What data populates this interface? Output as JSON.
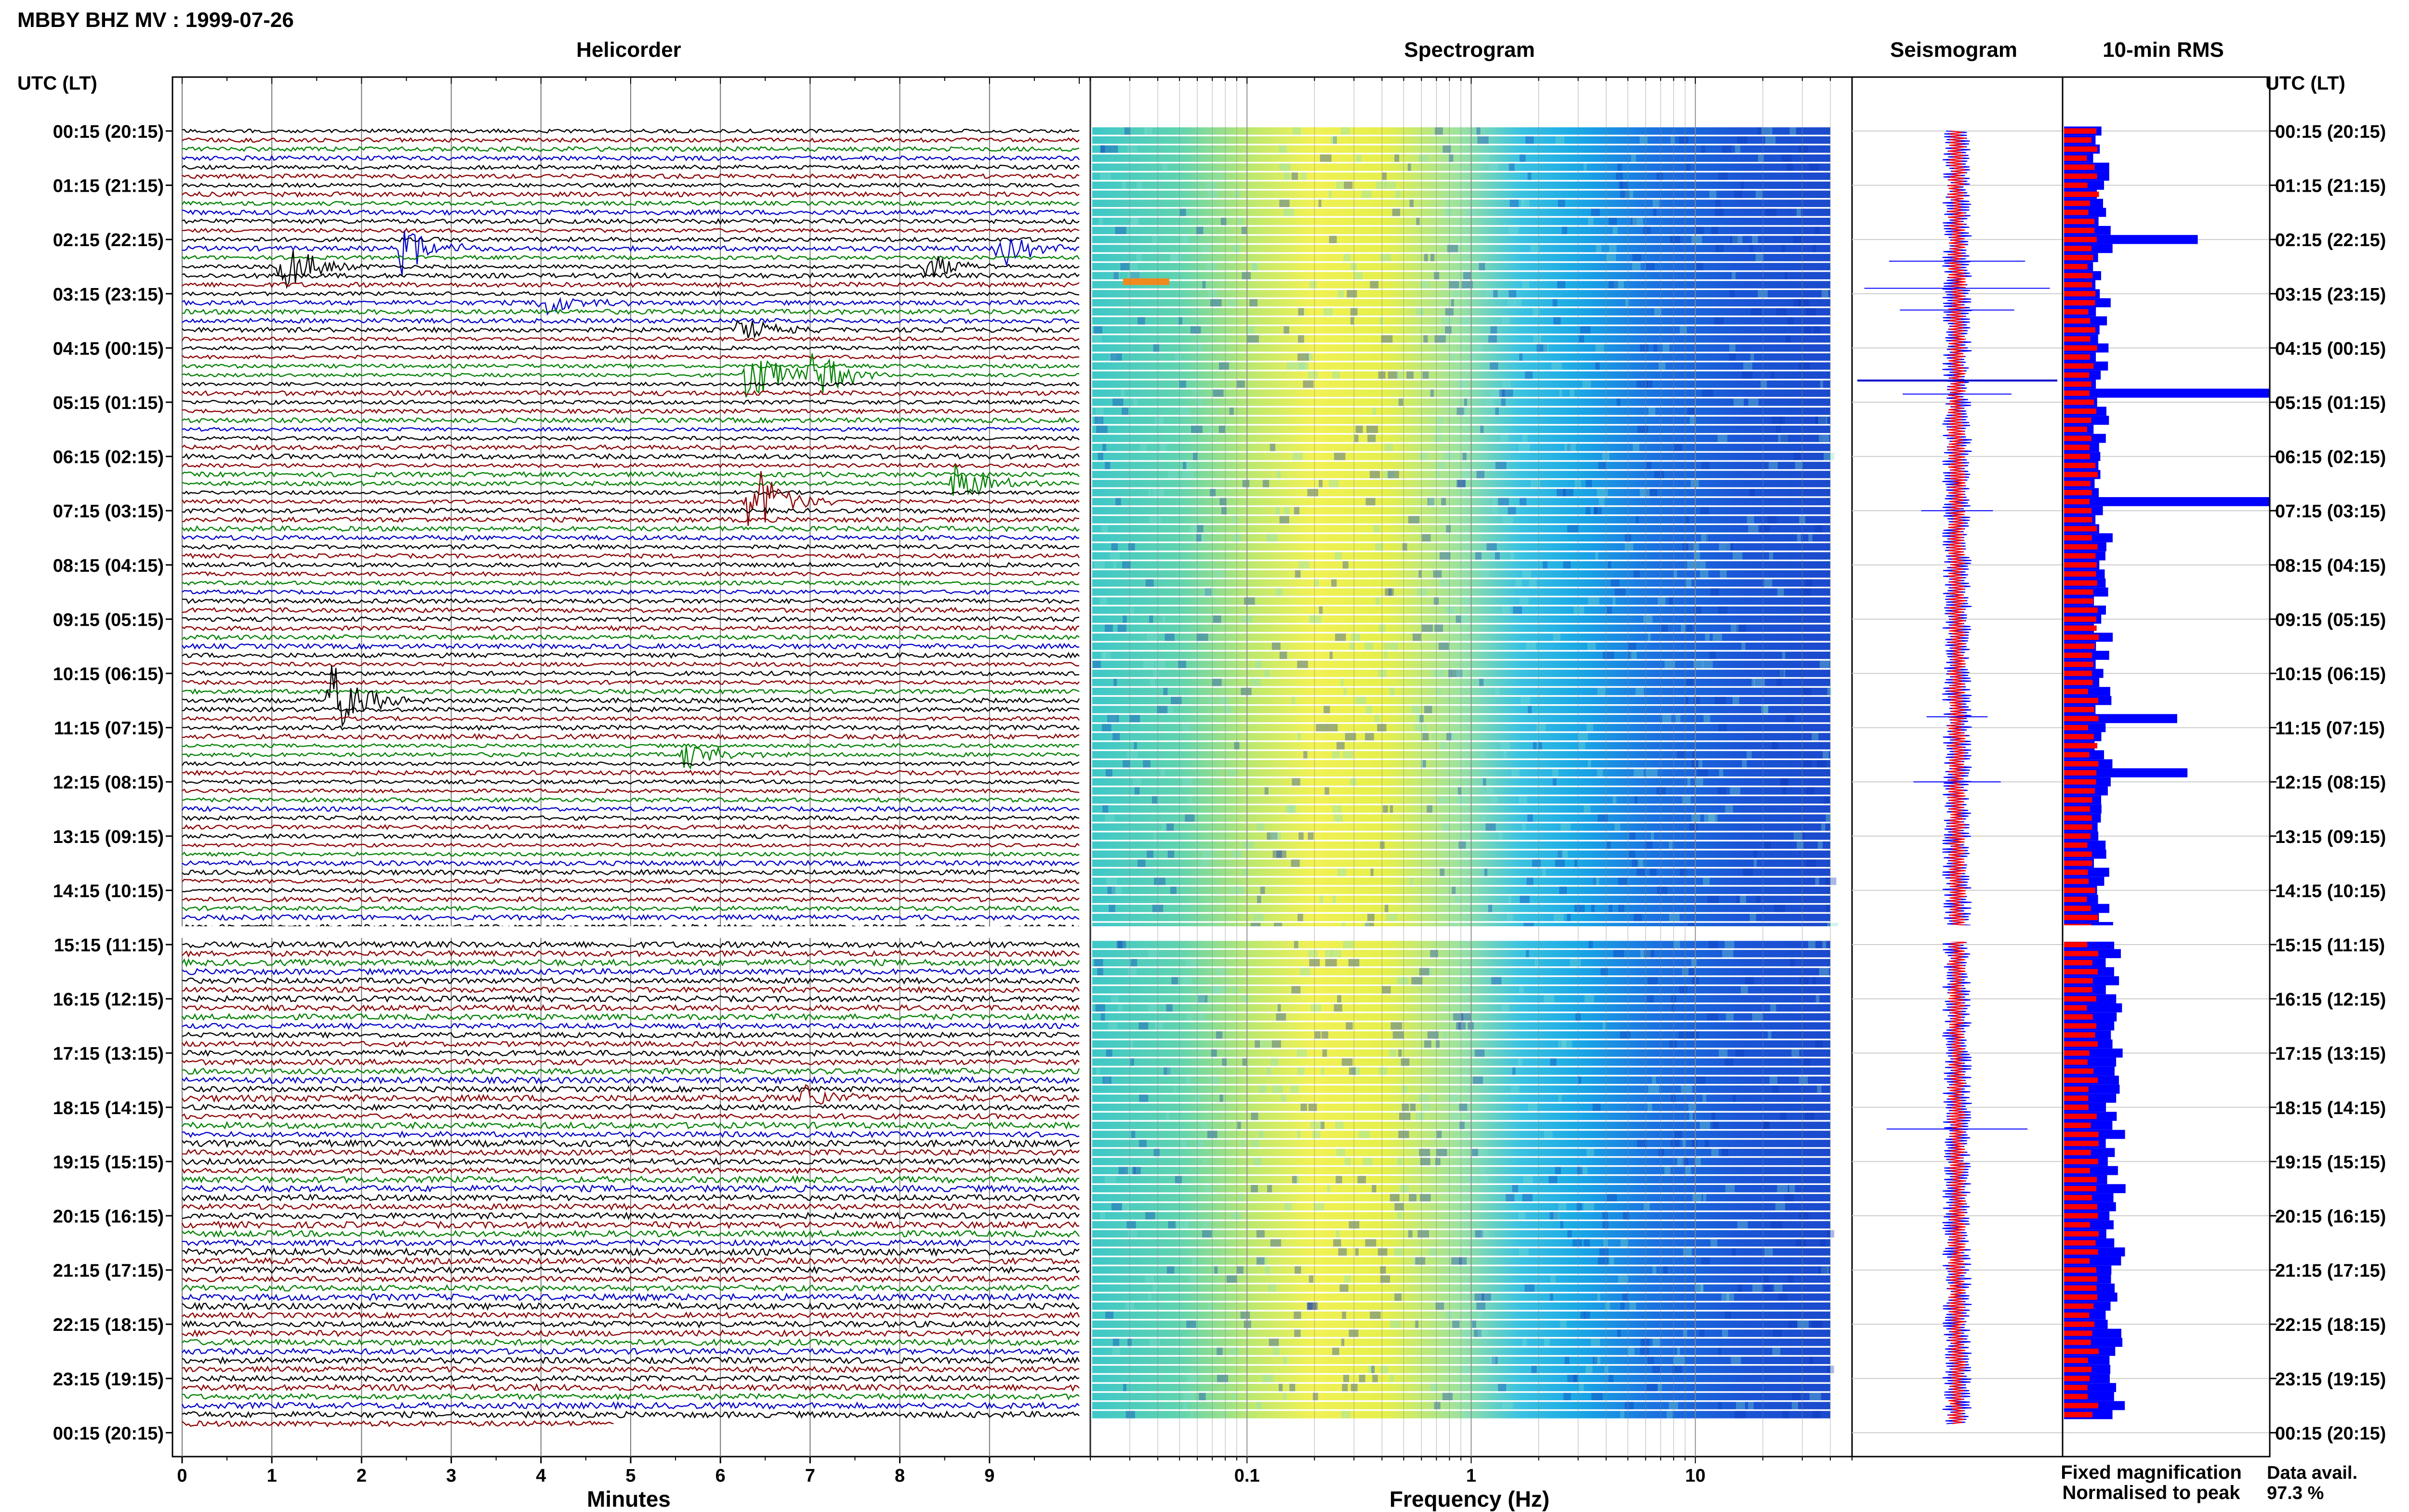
{
  "header": {
    "title": "MBBY BHZ MV : 1999-07-26",
    "left_axis_title": "UTC (LT)",
    "right_axis_title": "UTC (LT)"
  },
  "panels": {
    "helicorder": "Helicorder",
    "spectrogram": "Spectrogram",
    "seismogram": "Seismogram",
    "rms": "10-min RMS"
  },
  "axes": {
    "minutes_label": "Minutes",
    "frequency_label": "Frequency (Hz)"
  },
  "legend": {
    "fixed_label": "Fixed magnification",
    "fixed_color": "#0000ff",
    "normalised_label": "Normalised to peak",
    "normalised_color": "#ff0000",
    "data_avail_label": "Data avail.",
    "data_avail_value": "97.3 %"
  },
  "colors": {
    "trace_cycle": [
      "#000000",
      "#8b0000",
      "#008000",
      "#0000cc"
    ],
    "rms_fixed": "#0000ff",
    "rms_normalised": "#ff0000"
  },
  "chart_data": [
    {
      "type": "line",
      "title": "Helicorder",
      "xlabel": "Minutes",
      "x_ticks": [
        "0",
        "1",
        "2",
        "3",
        "4",
        "5",
        "6",
        "7",
        "8",
        "9"
      ],
      "xlim": [
        0,
        10
      ],
      "row_labels": [
        "00:15 (20:15)",
        "01:15 (21:15)",
        "02:15 (22:15)",
        "03:15 (23:15)",
        "04:15 (00:15)",
        "05:15 (01:15)",
        "06:15 (02:15)",
        "07:15 (03:15)",
        "08:15 (04:15)",
        "09:15 (05:15)",
        "10:15 (06:15)",
        "11:15 (07:15)",
        "12:15 (08:15)",
        "13:15 (09:15)",
        "14:15 (10:15)",
        "15:15 (11:15)",
        "16:15 (12:15)",
        "17:15 (13:15)",
        "18:15 (14:15)",
        "19:15 (15:15)",
        "20:15 (16:15)",
        "21:15 (17:15)",
        "22:15 (18:15)",
        "23:15 (19:15)",
        "00:15 (20:15)"
      ],
      "rows_per_hour": 6,
      "gap_after_hour": 14,
      "last_row_length_minutes": 4.8,
      "events": [
        {
          "hour": 2,
          "row": 3,
          "minute": 1.1,
          "amplitude": 3.5,
          "color_index": 0
        },
        {
          "hour": 2,
          "row": 1,
          "minute": 2.45,
          "amplitude": 2.8,
          "color_index": 3
        },
        {
          "hour": 2,
          "row": 1,
          "minute": 9.1,
          "amplitude": 2.2,
          "color_index": 3
        },
        {
          "hour": 2,
          "row": 3,
          "minute": 8.3,
          "amplitude": 1.8,
          "color_index": 1
        },
        {
          "hour": 3,
          "row": 1,
          "minute": 4.0,
          "amplitude": 2.0,
          "color_index": 3
        },
        {
          "hour": 3,
          "row": 4,
          "minute": 6.2,
          "amplitude": 1.5,
          "color_index": 0
        },
        {
          "hour": 4,
          "row": 3,
          "minute": 6.3,
          "amplitude": 4.0,
          "color_index": 2
        },
        {
          "hour": 4,
          "row": 3,
          "minute": 7.0,
          "amplitude": 3.5,
          "color_index": 2
        },
        {
          "hour": 6,
          "row": 5,
          "minute": 6.3,
          "amplitude": 5.5,
          "color_index": 1
        },
        {
          "hour": 6,
          "row": 3,
          "minute": 8.6,
          "amplitude": 2.6,
          "color_index": 2
        },
        {
          "hour": 10,
          "row": 3,
          "minute": 1.65,
          "amplitude": 4.5,
          "color_index": 0
        },
        {
          "hour": 11,
          "row": 3,
          "minute": 5.6,
          "amplitude": 2.0,
          "color_index": 2
        },
        {
          "hour": 17,
          "row": 5,
          "minute": 6.9,
          "amplitude": 1.8,
          "color_index": 1
        }
      ]
    },
    {
      "type": "heatmap",
      "title": "Spectrogram",
      "xlabel": "Frequency (Hz)",
      "x_scale": "log",
      "xlim": [
        0.02,
        50
      ],
      "x_ticks": [
        0.1,
        1,
        10
      ],
      "x_tick_labels": [
        "0.1",
        "1",
        "10"
      ],
      "data_upper_frequency_hz": 40
    },
    {
      "type": "line",
      "title": "Seismogram"
    },
    {
      "type": "bar",
      "title": "10-min RMS",
      "orientation": "horizontal",
      "series": [
        {
          "name": "Fixed magnification",
          "color": "#0000ff"
        },
        {
          "name": "Normalised to peak",
          "color": "#ff0000"
        }
      ],
      "spikes": [
        {
          "hour": 4,
          "row": 5,
          "fixed": 1.0
        },
        {
          "hour": 6,
          "row": 5,
          "fixed": 1.0
        },
        {
          "hour": 2,
          "row": 0,
          "fixed": 0.65
        },
        {
          "hour": 11,
          "row": 5,
          "fixed": 0.6
        },
        {
          "hour": 10,
          "row": 5,
          "fixed": 0.55
        }
      ]
    }
  ]
}
